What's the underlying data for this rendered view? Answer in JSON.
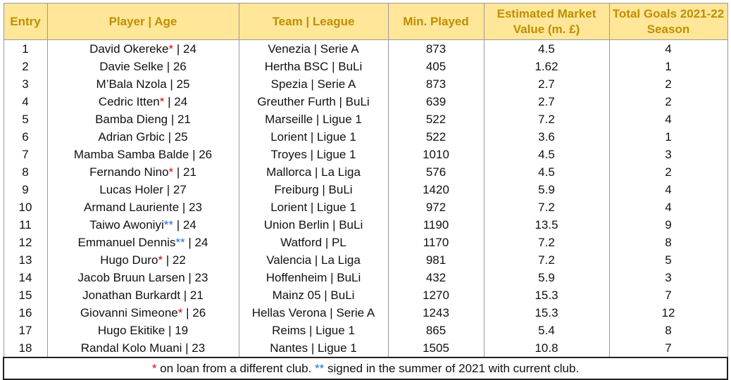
{
  "headers": {
    "entry": "Entry",
    "player_age": "Player | Age",
    "team_league": "Team | League",
    "min_played": "Min. Played",
    "market_value": "Estimated Market Value (m. £)",
    "total_goals": "Total Goals 2021-22 Season"
  },
  "rows": [
    {
      "entry": "1",
      "name": "David Okereke",
      "mark": "*",
      "age": " | 24",
      "team": "Venezia | Serie A",
      "min": "873",
      "value": "4.5",
      "goals": "4"
    },
    {
      "entry": "2",
      "name": "Davie Selke",
      "mark": "",
      "age": " | 26",
      "team": "Hertha BSC | BuLi",
      "min": "405",
      "value": "1.62",
      "goals": "1"
    },
    {
      "entry": "3",
      "name": "M’Bala Nzola",
      "mark": "",
      "age": " | 25",
      "team": "Spezia | Serie A",
      "min": "873",
      "value": "2.7",
      "goals": "2"
    },
    {
      "entry": "4",
      "name": "Cedric Itten",
      "mark": "*",
      "age": " | 24",
      "team": "Greuther Furth | BuLi",
      "min": "639",
      "value": "2.7",
      "goals": "2"
    },
    {
      "entry": "5",
      "name": "Bamba Dieng",
      "mark": "",
      "age": " | 21",
      "team": "Marseille | Ligue 1",
      "min": "522",
      "value": "7.2",
      "goals": "4"
    },
    {
      "entry": "6",
      "name": "Adrian Grbic",
      "mark": "",
      "age": " | 25",
      "team": "Lorient | Ligue 1",
      "min": "522",
      "value": "3.6",
      "goals": "1"
    },
    {
      "entry": "7",
      "name": "Mamba Samba Balde",
      "mark": "",
      "age": " | 26",
      "team": "Troyes | Ligue 1",
      "min": "1010",
      "value": "4.5",
      "goals": "3"
    },
    {
      "entry": "8",
      "name": "Fernando Nino",
      "mark": "*",
      "age": " | 21",
      "team": "Mallorca | La Liga",
      "min": "576",
      "value": "4.5",
      "goals": "2"
    },
    {
      "entry": "9",
      "name": "Lucas Holer",
      "mark": "",
      "age": " | 27",
      "team": "Freiburg | BuLi",
      "min": "1420",
      "value": "5.9",
      "goals": "4"
    },
    {
      "entry": "10",
      "name": "Armand Lauriente",
      "mark": "",
      "age": " | 23",
      "team": "Lorient | Ligue 1",
      "min": "972",
      "value": "7.2",
      "goals": "4"
    },
    {
      "entry": "11",
      "name": "Taiwo Awoniyi",
      "mark": "**",
      "age": " | 24",
      "team": "Union Berlin | BuLi",
      "min": "1190",
      "value": "13.5",
      "goals": "9"
    },
    {
      "entry": "12",
      "name": "Emmanuel Dennis",
      "mark": "**",
      "age": " | 24",
      "team": "Watford | PL",
      "min": "1170",
      "value": "7.2",
      "goals": "8"
    },
    {
      "entry": "13",
      "name": "Hugo Duro",
      "mark": "*",
      "age": " | 22",
      "team": "Valencia | La Liga",
      "min": "981",
      "value": "7.2",
      "goals": "5"
    },
    {
      "entry": "14",
      "name": "Jacob Bruun Larsen",
      "mark": "",
      "age": " | 23",
      "team": "Hoffenheim | BuLi",
      "min": "432",
      "value": "5.9",
      "goals": "3"
    },
    {
      "entry": "15",
      "name": "Jonathan Burkardt",
      "mark": "",
      "age": " | 21",
      "team": "Mainz 05 | BuLi",
      "min": "1270",
      "value": "15.3",
      "goals": "7"
    },
    {
      "entry": "16",
      "name": "Giovanni Simeone",
      "mark": "*",
      "age": " | 26",
      "team": "Hellas Verona | Serie A",
      "min": "1243",
      "value": "15.3",
      "goals": "12"
    },
    {
      "entry": "17",
      "name": "Hugo Ekitike",
      "mark": "",
      "age": " | 19",
      "team": "Reims | Ligue 1",
      "min": "865",
      "value": "5.4",
      "goals": "8"
    },
    {
      "entry": "18",
      "name": "Randal Kolo Muani",
      "mark": "",
      "age": " | 23",
      "team": "Nantes | Ligue 1",
      "min": "1505",
      "value": "10.8",
      "goals": "7"
    }
  ],
  "footnote": {
    "mark1": "*",
    "text1": " on loan from a different club. ",
    "mark2": "**",
    "text2": " signed in the summer of 2021 with current club."
  },
  "colors": {
    "header_bg": "#ffe699",
    "header_text": "#bf8f00",
    "loan_mark": "#e00000",
    "signed_mark": "#1f6fd1"
  }
}
